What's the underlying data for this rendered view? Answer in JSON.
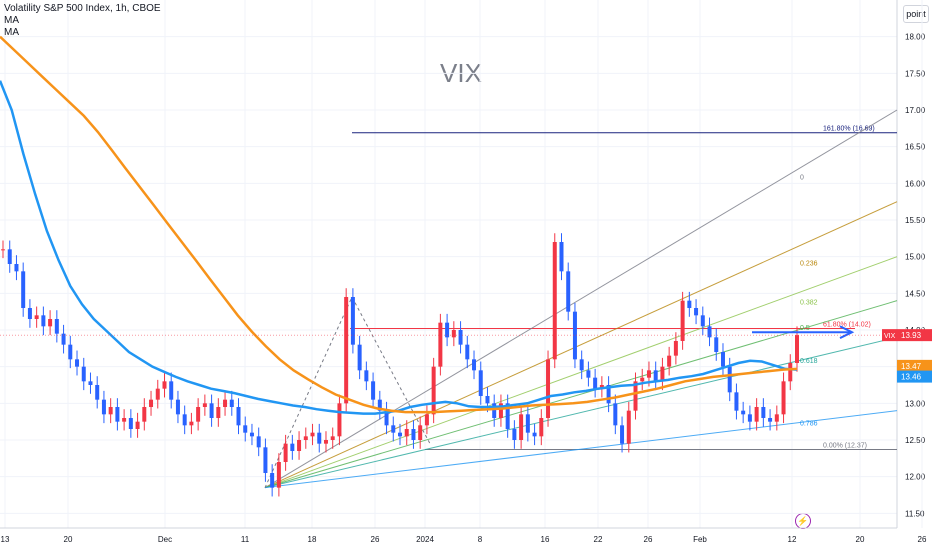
{
  "header": {
    "title": "Volatility S&P 500 Index, 1h, CBOE",
    "ma1": "MA",
    "ma2": "MA"
  },
  "watermark": "VIX",
  "scale_button": "point",
  "chart_data": {
    "type": "line",
    "title": "",
    "symbol": "VIX",
    "ylim": [
      11.3,
      18.5
    ],
    "x_ticks": [
      "13",
      "20",
      "Dec",
      "11",
      "18",
      "26",
      "2024",
      "8",
      "16",
      "22",
      "26",
      "Feb",
      "12",
      "20",
      "26"
    ],
    "y_ticks": [
      "11.50",
      "12.00",
      "12.50",
      "13.00",
      "13.50",
      "14.00",
      "14.50",
      "15.00",
      "15.50",
      "16.00",
      "16.50",
      "17.00",
      "17.50",
      "18.00"
    ],
    "price_labels": [
      {
        "text": "13.93",
        "value": 13.93,
        "color": "#f23645"
      },
      {
        "text": "13.47",
        "value": 13.47,
        "color": "#f7931a"
      },
      {
        "text": "13.46",
        "value": 13.46,
        "color": "#2196f3"
      }
    ],
    "fib_levels": [
      {
        "label": "161.80% (16.69)",
        "value": 16.69,
        "color": "#1a237e"
      },
      {
        "label": "61.80% (14.02)",
        "value": 14.02,
        "color": "#f23645"
      },
      {
        "label": "0.00% (12.37)",
        "value": 12.37,
        "color": "#787b86"
      }
    ],
    "fan_labels": [
      {
        "text": "0",
        "color": "#787b86"
      },
      {
        "text": "0.236",
        "color": "#b8860b"
      },
      {
        "text": "0.382",
        "color": "#8bc34a"
      },
      {
        "text": "0.5",
        "color": "#4caf50"
      },
      {
        "text": "0.618",
        "color": "#26a69a"
      },
      {
        "text": "0.786",
        "color": "#2196f3"
      }
    ],
    "series": [
      {
        "type": "candlestick",
        "closes": [
          15.1,
          14.9,
          14.8,
          14.3,
          14.15,
          14.2,
          14.05,
          14.15,
          13.95,
          13.8,
          13.6,
          13.5,
          13.3,
          13.25,
          13.05,
          12.85,
          12.95,
          12.75,
          12.8,
          12.65,
          12.75,
          12.95,
          13.05,
          13.2,
          13.3,
          13.05,
          12.85,
          12.7,
          12.75,
          12.95,
          13.0,
          12.8,
          12.95,
          13.05,
          12.95,
          12.7,
          12.6,
          12.55,
          12.4,
          12.05,
          11.85,
          12.2,
          12.45,
          12.35,
          12.5,
          12.55,
          12.6,
          12.45,
          12.5,
          12.55,
          13.0,
          14.45,
          13.8,
          13.45,
          13.3,
          13.05,
          12.9,
          12.7,
          12.6,
          12.55,
          12.65,
          12.5,
          12.7,
          12.85,
          13.5,
          14.1,
          13.9,
          14.0,
          13.8,
          13.6,
          13.45,
          13.1,
          13.0,
          12.8,
          13.0,
          12.65,
          12.5,
          12.85,
          12.6,
          12.55,
          12.8,
          13.6,
          15.2,
          14.8,
          14.25,
          13.6,
          13.45,
          13.35,
          13.2,
          13.25,
          13.0,
          12.7,
          12.45,
          12.9,
          13.3,
          13.35,
          13.45,
          13.3,
          13.5,
          13.65,
          13.85,
          14.4,
          14.3,
          14.2,
          14.05,
          13.9,
          13.7,
          13.5,
          13.15,
          12.9,
          12.85,
          12.75,
          12.95,
          12.8,
          12.75,
          12.85,
          13.3,
          13.55,
          13.93
        ]
      },
      {
        "name": "MA",
        "color": "#2196f3",
        "values": [
          17.4,
          17.0,
          16.4,
          15.85,
          15.35,
          14.95,
          14.6,
          14.35,
          14.15,
          14.0,
          13.85,
          13.7,
          13.6,
          13.5,
          13.43,
          13.36,
          13.3,
          13.25,
          13.2,
          13.17,
          13.14,
          13.1,
          13.06,
          13.03,
          13.0,
          12.97,
          12.95,
          12.92,
          12.9,
          12.88,
          12.87,
          12.86,
          12.86,
          12.88,
          12.9,
          12.95,
          12.98,
          13.0,
          13.02,
          13.0,
          12.96,
          12.95,
          12.95,
          12.96,
          12.98,
          13.0,
          13.05,
          13.1,
          13.12,
          13.15,
          13.17,
          13.2,
          13.22,
          13.24,
          13.25,
          13.28,
          13.3,
          13.32,
          13.35,
          13.37,
          13.4,
          13.45,
          13.5,
          13.55,
          13.58,
          13.57,
          13.52,
          13.47,
          13.46
        ]
      },
      {
        "name": "MA",
        "color": "#f7931a",
        "values": [
          18.0,
          17.82,
          17.64,
          17.46,
          17.28,
          17.1,
          16.92,
          16.7,
          16.45,
          16.2,
          15.95,
          15.7,
          15.45,
          15.2,
          14.95,
          14.7,
          14.45,
          14.2,
          13.98,
          13.78,
          13.6,
          13.45,
          13.33,
          13.22,
          13.12,
          13.05,
          12.98,
          12.93,
          12.9,
          12.88,
          12.88,
          12.88,
          12.89,
          12.9,
          12.91,
          12.92,
          12.93,
          12.95,
          12.97,
          12.98,
          12.99,
          13.0,
          13.02,
          13.05,
          13.08,
          13.12,
          13.16,
          13.2,
          13.25,
          13.3,
          13.33,
          13.36,
          13.38,
          13.4,
          13.42,
          13.44,
          13.46,
          13.47
        ]
      }
    ]
  }
}
